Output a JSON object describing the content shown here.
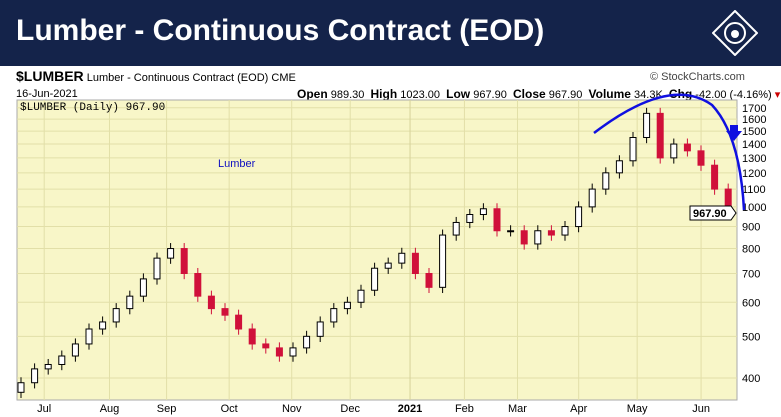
{
  "banner": {
    "title": "Lumber - Continuous Contract (EOD)"
  },
  "header": {
    "symbol": "$LUMBER",
    "name": "Lumber - Continuous Contract (EOD)",
    "exchange": "CME",
    "copyright": "© StockCharts.com",
    "date": "16-Jun-2021",
    "open_label": "Open",
    "open": "989.30",
    "high_label": "High",
    "high": "1023.00",
    "low_label": "Low",
    "low": "967.90",
    "close_label": "Close",
    "close": "967.90",
    "volume_label": "Volume",
    "volume": "34.3K",
    "chg_label": "Chg",
    "chg": "-42.00 (-4.16%)"
  },
  "colors": {
    "band": "#14234a",
    "plot_bg": "#f8f6c8",
    "up": "#000000",
    "down": "#d0103a",
    "annotation": "#1010e0"
  },
  "chart_data": {
    "type": "candlestick",
    "title": "$LUMBER (Daily) 967.90",
    "series_label": "Lumber",
    "last_value_label": "967.90",
    "yscale": "log",
    "ylim": [
      360,
      1800
    ],
    "yticks": [
      400,
      500,
      600,
      700,
      800,
      900,
      1000,
      1100,
      1200,
      1300,
      1400,
      1500,
      1600,
      1700
    ],
    "xticks": [
      {
        "label": "Jul",
        "week": 2
      },
      {
        "label": "Aug",
        "week": 6.8
      },
      {
        "label": "Sep",
        "week": 11
      },
      {
        "label": "Oct",
        "week": 15.6
      },
      {
        "label": "Nov",
        "week": 20.2
      },
      {
        "label": "Dec",
        "week": 24.5
      },
      {
        "label": "2021",
        "week": 28.9
      },
      {
        "label": "Feb",
        "week": 32.9
      },
      {
        "label": "Mar",
        "week": 36.8
      },
      {
        "label": "Apr",
        "week": 41.3
      },
      {
        "label": "May",
        "week": 45.6
      },
      {
        "label": "Jun",
        "week": 50.3
      }
    ],
    "weekly_close": [
      390,
      420,
      430,
      450,
      480,
      520,
      540,
      580,
      620,
      680,
      760,
      800,
      700,
      620,
      580,
      560,
      520,
      480,
      470,
      450,
      470,
      500,
      540,
      580,
      600,
      640,
      720,
      740,
      780,
      700,
      650,
      860,
      920,
      960,
      990,
      880,
      880,
      820,
      880,
      860,
      900,
      1000,
      1100,
      1200,
      1280,
      1450,
      1650,
      1300,
      1400,
      1350,
      1250,
      1100,
      968
    ]
  }
}
